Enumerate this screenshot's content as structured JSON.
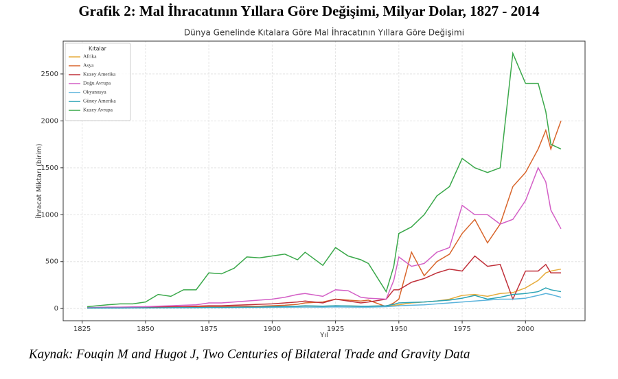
{
  "heading": "Grafik 2: Mal İhracatının Yıllara Göre Değişimi, Milyar Dolar, 1827 - 2014",
  "source": "Kaynak: Fouqin M and Hugot J, Two Centuries of Bilateral Trade and Gravity Data",
  "chart_data": {
    "type": "line",
    "title": "Dünya Genelinde Kıtalara Göre Mal İhracatının Yıllara Göre Değişimi",
    "x_label": "Yıl",
    "y_label": "İhracat Miktarı (birim)",
    "legend_title": "Kıtalar",
    "legend_position": "upper left",
    "grid": true,
    "x": [
      1827,
      1835,
      1840,
      1845,
      1850,
      1855,
      1860,
      1865,
      1870,
      1875,
      1880,
      1885,
      1890,
      1895,
      1900,
      1905,
      1910,
      1913,
      1920,
      1925,
      1930,
      1935,
      1938,
      1945,
      1948,
      1950,
      1955,
      1960,
      1965,
      1970,
      1975,
      1980,
      1985,
      1990,
      1995,
      2000,
      2005,
      2008,
      2010,
      2014
    ],
    "xlim": [
      1817.5,
      2023.5
    ],
    "xticks": [
      1825,
      1850,
      1875,
      1900,
      1925,
      1950,
      1975,
      2000
    ],
    "ylim": [
      -130,
      2850
    ],
    "yticks": [
      0,
      500,
      1000,
      1500,
      2000,
      2500
    ],
    "series": [
      {
        "name": "Afrika",
        "color": "#e6ac3c",
        "values": [
          5,
          8,
          8,
          10,
          10,
          12,
          12,
          14,
          15,
          15,
          18,
          18,
          20,
          20,
          22,
          22,
          25,
          28,
          25,
          30,
          28,
          25,
          25,
          30,
          35,
          40,
          60,
          70,
          80,
          100,
          140,
          150,
          130,
          160,
          170,
          220,
          300,
          380,
          400,
          420
        ]
      },
      {
        "name": "Asya",
        "color": "#d8652b",
        "values": [
          10,
          10,
          10,
          12,
          12,
          14,
          15,
          15,
          18,
          20,
          20,
          22,
          25,
          25,
          30,
          35,
          45,
          60,
          70,
          100,
          90,
          80,
          90,
          20,
          60,
          100,
          600,
          350,
          500,
          580,
          800,
          950,
          700,
          900,
          1300,
          1450,
          1700,
          1900,
          1700,
          2000
        ]
      },
      {
        "name": "Kuzey Amerika",
        "color": "#c0303a",
        "values": [
          10,
          10,
          12,
          12,
          15,
          18,
          20,
          20,
          25,
          30,
          30,
          35,
          40,
          45,
          50,
          60,
          70,
          80,
          60,
          100,
          80,
          60,
          70,
          100,
          200,
          200,
          280,
          320,
          380,
          420,
          400,
          560,
          450,
          470,
          100,
          400,
          400,
          470,
          380,
          380
        ]
      },
      {
        "name": "Doğu Avrupa",
        "color": "#d35fc6",
        "values": [
          10,
          15,
          15,
          18,
          20,
          25,
          30,
          35,
          40,
          60,
          60,
          70,
          80,
          90,
          100,
          120,
          150,
          160,
          130,
          200,
          190,
          120,
          110,
          100,
          300,
          550,
          450,
          480,
          600,
          650,
          1100,
          1000,
          1000,
          900,
          950,
          1150,
          1500,
          1350,
          1050,
          850
        ]
      },
      {
        "name": "Okyanusya",
        "color": "#5bb3dc",
        "values": [
          5,
          5,
          5,
          6,
          6,
          7,
          8,
          8,
          9,
          10,
          10,
          11,
          12,
          12,
          13,
          14,
          15,
          16,
          15,
          18,
          16,
          15,
          15,
          20,
          25,
          30,
          35,
          40,
          50,
          60,
          70,
          80,
          90,
          100,
          100,
          110,
          140,
          160,
          150,
          120
        ]
      },
      {
        "name": "Güney Amerika",
        "color": "#2aa3b5",
        "values": [
          5,
          6,
          6,
          7,
          8,
          8,
          9,
          10,
          10,
          12,
          12,
          14,
          15,
          16,
          20,
          22,
          25,
          30,
          25,
          30,
          28,
          25,
          25,
          30,
          45,
          60,
          65,
          70,
          80,
          90,
          110,
          140,
          100,
          120,
          150,
          160,
          180,
          220,
          200,
          180
        ]
      },
      {
        "name": "Kuzey Avrupa",
        "color": "#3aa84a",
        "values": [
          20,
          40,
          50,
          50,
          70,
          150,
          130,
          200,
          200,
          380,
          370,
          430,
          550,
          540,
          560,
          580,
          520,
          600,
          460,
          650,
          560,
          520,
          480,
          180,
          450,
          800,
          870,
          1000,
          1200,
          1300,
          1600,
          1500,
          1450,
          1500,
          2720,
          2400,
          2400,
          2100,
          1750,
          1700
        ]
      }
    ]
  }
}
